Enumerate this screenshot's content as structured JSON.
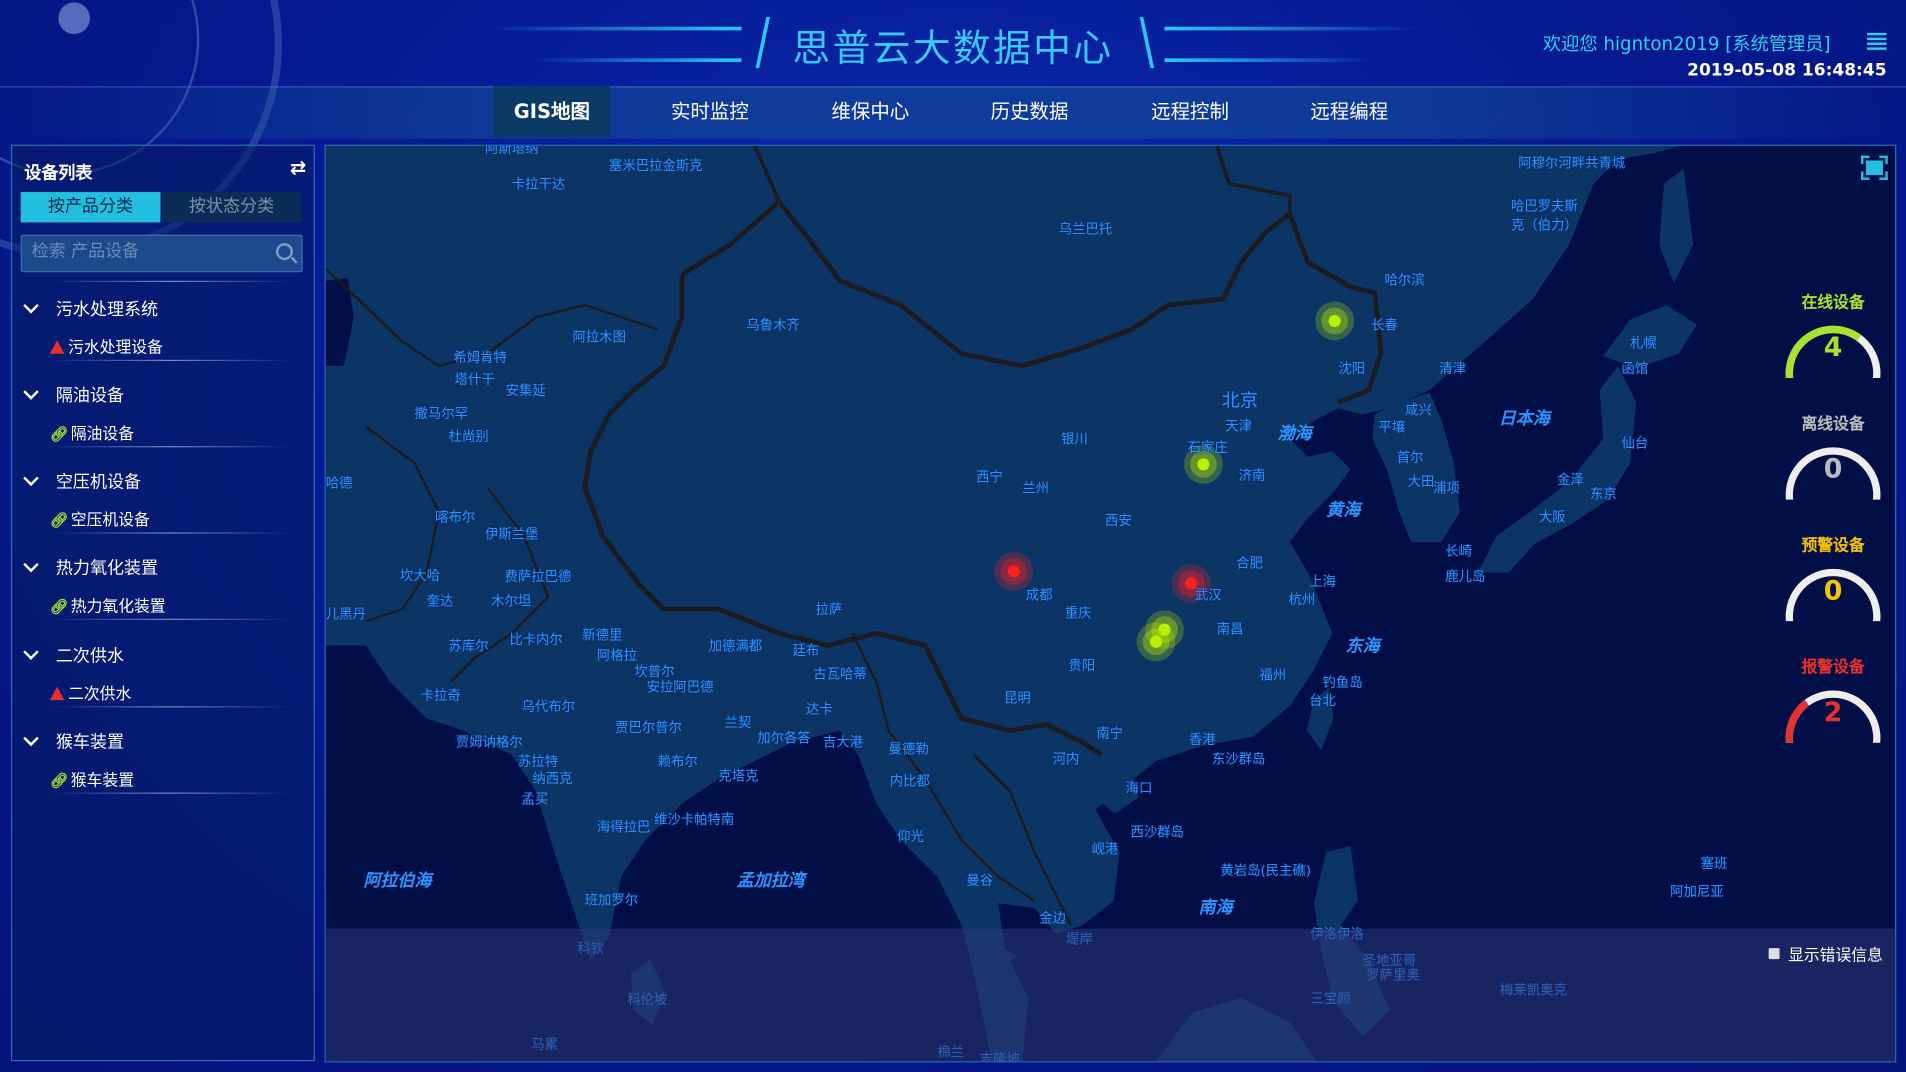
{
  "header": {
    "title": "思普云大数据中心",
    "welcome": "欢迎您  hignton2019 [系统管理员]",
    "datetime": "2019-05-08 16:48:45"
  },
  "nav": {
    "tabs": [
      {
        "label": "GIS地图",
        "active": true
      },
      {
        "label": "实时监控",
        "active": false
      },
      {
        "label": "维保中心",
        "active": false
      },
      {
        "label": "历史数据",
        "active": false
      },
      {
        "label": "远程控制",
        "active": false
      },
      {
        "label": "远程编程",
        "active": false
      }
    ]
  },
  "sidebar": {
    "title": "设备列表",
    "tabs": [
      "按产品分类",
      "按状态分类"
    ],
    "active_tab": "按产品分类",
    "search_placeholder": "检索 产品设备",
    "groups": [
      {
        "label": "污水处理系统",
        "item": "污水处理设备",
        "status": "alarm"
      },
      {
        "label": "隔油设备",
        "item": "隔油设备",
        "status": "online"
      },
      {
        "label": "空压机设备",
        "item": "空压机设备",
        "status": "online"
      },
      {
        "label": "热力氧化装置",
        "item": "热力氧化装置",
        "status": "online"
      },
      {
        "label": "二次供水",
        "item": "二次供水",
        "status": "alarm"
      },
      {
        "label": "猴车装置",
        "item": "猴车装置",
        "status": "online"
      }
    ]
  },
  "stats": [
    {
      "label": "在线设备",
      "value": 4,
      "color": "#a6e22e"
    },
    {
      "label": "离线设备",
      "value": 0,
      "color": "#bbbbbb"
    },
    {
      "label": "预警设备",
      "value": 0,
      "color": "#f5c400"
    },
    {
      "label": "报警设备",
      "value": 2,
      "color": "#e8302e"
    }
  ],
  "map": {
    "show_error_label": "显示错误信息",
    "markers": [
      {
        "status": "online",
        "color": "#b8f000",
        "near": "长春"
      },
      {
        "status": "online",
        "color": "#b8f000",
        "near": "石家庄"
      },
      {
        "status": "alarm",
        "color": "#ff2020",
        "near": "成都"
      },
      {
        "status": "alarm",
        "color": "#ff2020",
        "near": "武汉"
      },
      {
        "status": "online",
        "color": "#b8f000",
        "near": "长沙"
      },
      {
        "status": "online",
        "color": "#b8f000",
        "near": "长沙"
      }
    ],
    "cities": [
      "阿斯塔纳",
      "塞米巴拉金斯克",
      "卡拉干达",
      "乌兰巴托",
      "阿穆尔河畔共青城",
      "哈巴罗夫斯克（伯力）",
      "哈尔滨",
      "长春",
      "乌鲁木齐",
      "阿拉木图",
      "希姆肯特",
      "塔什干",
      "安集延",
      "撒马尔罕",
      "杜尚别",
      "札幌",
      "函馆",
      "沈阳",
      "清津",
      "北京",
      "咸兴",
      "天津",
      "平壤",
      "银川",
      "石家庄",
      "首尔",
      "仙台",
      "济南",
      "西宁",
      "兰州",
      "大田",
      "浦项",
      "金泽",
      "东京",
      "大阪",
      "喀布尔",
      "西安",
      "伊斯兰堡",
      "合肥",
      "长崎",
      "鹿儿岛",
      "坎大哈",
      "费萨拉巴德",
      "成都",
      "武汉",
      "上海",
      "杭州",
      "奎达",
      "木尔坦",
      "拉萨",
      "重庆",
      "儿黑丹",
      "南昌",
      "苏库尔",
      "比卡内尔",
      "新德里",
      "加德满都",
      "廷布",
      "阿格拉",
      "坎普尔",
      "贵阳",
      "古瓦哈蒂",
      "福州",
      "钓鱼岛",
      "安拉阿巴德",
      "卡拉奇",
      "台北",
      "昆明",
      "乌代布尔",
      "达卡",
      "贾巴尔普尔",
      "兰契",
      "南宁",
      "香港",
      "贾姆讷格尔",
      "加尔各答",
      "吉大港",
      "曼德勒",
      "苏拉特",
      "东沙群岛",
      "赖布尔",
      "河内",
      "纳西克",
      "克塔克",
      "内比都",
      "海口",
      "孟买",
      "西沙群岛",
      "维沙卡帕特南",
      "海得拉巴",
      "仰光",
      "岘港",
      "塞班",
      "黄岩岛(民主礁)",
      "曼谷",
      "阿加尼亚",
      "班加罗尔",
      "金边",
      "堤岸",
      "伊洛伊洛",
      "科钦",
      "圣地亚哥",
      "罗萨里奥",
      "梅莱凯奥克",
      "科伦坡",
      "三宝颜",
      "马累",
      "棉兰",
      "吉隆坡",
      "哈德"
    ],
    "seas": [
      "渤海",
      "日本海",
      "黄海",
      "东海",
      "阿拉伯海",
      "孟加拉湾",
      "南海"
    ]
  }
}
